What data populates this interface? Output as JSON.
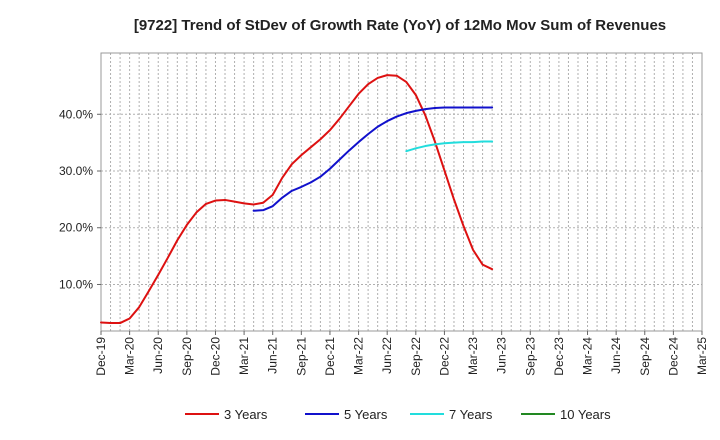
{
  "chart_data": {
    "type": "line",
    "title": "[9722]  Trend of StDev of Growth Rate (YoY) of 12Mo Mov Sum of Revenues",
    "xlabel": "",
    "ylabel": "",
    "x_ticks": [
      "Dec-19",
      "Mar-20",
      "Jun-20",
      "Sep-20",
      "Dec-20",
      "Mar-21",
      "Jun-21",
      "Sep-21",
      "Dec-21",
      "Mar-22",
      "Jun-22",
      "Sep-22",
      "Dec-22",
      "Mar-23",
      "Jun-23",
      "Sep-23",
      "Dec-23",
      "Mar-24",
      "Jun-24",
      "Sep-24",
      "Dec-24",
      "Mar-25"
    ],
    "y_ticks": [
      {
        "value": 10,
        "label": "10.0%"
      },
      {
        "value": 20,
        "label": "20.0%"
      },
      {
        "value": 30,
        "label": "30.0%"
      },
      {
        "value": 40,
        "label": "40.0%"
      }
    ],
    "ylim": [
      1.8,
      50.8
    ],
    "grid": true,
    "legend_position": "bottom",
    "series": [
      {
        "name": "3 Years",
        "color": "#dd1111",
        "values": [
          [
            0,
            3.3
          ],
          [
            1,
            3.2
          ],
          [
            2,
            3.2
          ],
          [
            3,
            4.0
          ],
          [
            4,
            6.0
          ],
          [
            5,
            8.8
          ],
          [
            6,
            11.7
          ],
          [
            7,
            14.7
          ],
          [
            8,
            17.8
          ],
          [
            9,
            20.5
          ],
          [
            10,
            22.7
          ],
          [
            11,
            24.2
          ],
          [
            12,
            24.8
          ],
          [
            13,
            24.9
          ],
          [
            14,
            24.6
          ],
          [
            15,
            24.3
          ],
          [
            16,
            24.1
          ],
          [
            17,
            24.4
          ],
          [
            18,
            25.8
          ],
          [
            19,
            28.8
          ],
          [
            20,
            31.2
          ],
          [
            21,
            32.8
          ],
          [
            22,
            34.2
          ],
          [
            23,
            35.6
          ],
          [
            24,
            37.2
          ],
          [
            25,
            39.2
          ],
          [
            26,
            41.4
          ],
          [
            27,
            43.6
          ],
          [
            28,
            45.3
          ],
          [
            29,
            46.4
          ],
          [
            30,
            46.9
          ],
          [
            31,
            46.8
          ],
          [
            32,
            45.7
          ],
          [
            33,
            43.4
          ],
          [
            34,
            39.8
          ],
          [
            35,
            35.2
          ],
          [
            36,
            30.1
          ],
          [
            37,
            25.0
          ],
          [
            38,
            20.3
          ],
          [
            39,
            16.1
          ],
          [
            40,
            13.5
          ],
          [
            41,
            12.7
          ]
        ]
      },
      {
        "name": "5 Years",
        "color": "#1111cc",
        "values": [
          [
            16,
            23.0
          ],
          [
            17,
            23.1
          ],
          [
            18,
            23.8
          ],
          [
            19,
            25.3
          ],
          [
            20,
            26.5
          ],
          [
            21,
            27.2
          ],
          [
            22,
            28.0
          ],
          [
            23,
            29.0
          ],
          [
            24,
            30.4
          ],
          [
            25,
            32.0
          ],
          [
            26,
            33.6
          ],
          [
            27,
            35.1
          ],
          [
            28,
            36.5
          ],
          [
            29,
            37.8
          ],
          [
            30,
            38.8
          ],
          [
            31,
            39.6
          ],
          [
            32,
            40.2
          ],
          [
            33,
            40.6
          ],
          [
            34,
            40.9
          ],
          [
            35,
            41.1
          ],
          [
            36,
            41.2
          ],
          [
            37,
            41.2
          ],
          [
            38,
            41.2
          ],
          [
            39,
            41.2
          ],
          [
            40,
            41.2
          ],
          [
            41,
            41.2
          ]
        ]
      },
      {
        "name": "7 Years",
        "color": "#22dddd",
        "values": [
          [
            32,
            33.5
          ],
          [
            33,
            34.0
          ],
          [
            34,
            34.4
          ],
          [
            35,
            34.7
          ],
          [
            36,
            34.9
          ],
          [
            37,
            35.0
          ],
          [
            38,
            35.1
          ],
          [
            39,
            35.1
          ],
          [
            40,
            35.2
          ],
          [
            41,
            35.2
          ]
        ]
      },
      {
        "name": "10 Years",
        "color": "#228822",
        "values": []
      }
    ]
  }
}
